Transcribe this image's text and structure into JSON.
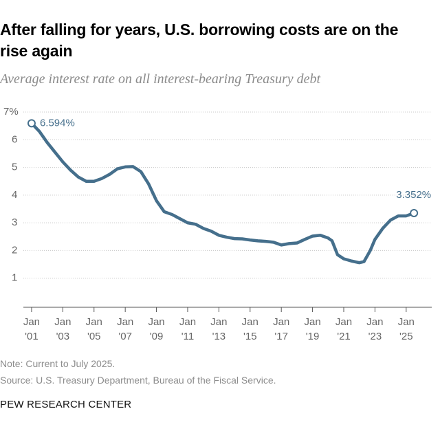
{
  "chart_data": {
    "type": "line",
    "title": "After falling for years, U.S. borrowing costs are on the rise again",
    "subtitle": "Average interest rate on all interest-bearing Treasury debt",
    "note": "Note: Current to July 2025.",
    "source": "Source: U.S. Treasury Department, Bureau of the Fiscal Service.",
    "brand": "PEW RESEARCH CENTER",
    "x": [
      2001.0,
      2001.5,
      2002.0,
      2002.5,
      2003.0,
      2003.5,
      2004.0,
      2004.5,
      2005.0,
      2005.5,
      2006.0,
      2006.5,
      2007.0,
      2007.5,
      2008.0,
      2008.5,
      2009.0,
      2009.5,
      2010.0,
      2010.5,
      2011.0,
      2011.5,
      2012.0,
      2012.5,
      2013.0,
      2013.5,
      2014.0,
      2014.5,
      2015.0,
      2015.5,
      2016.0,
      2016.5,
      2017.0,
      2017.5,
      2018.0,
      2018.5,
      2019.0,
      2019.5,
      2020.0,
      2020.25,
      2020.6,
      2021.0,
      2021.5,
      2022.0,
      2022.3,
      2022.7,
      2023.0,
      2023.5,
      2024.0,
      2024.5,
      2025.0,
      2025.5
    ],
    "series": [
      {
        "name": "Average interest rate",
        "color": "#456f8c",
        "values": [
          6.594,
          6.3,
          5.9,
          5.55,
          5.2,
          4.9,
          4.65,
          4.5,
          4.5,
          4.6,
          4.75,
          4.95,
          5.02,
          5.03,
          4.85,
          4.4,
          3.8,
          3.4,
          3.3,
          3.15,
          3.0,
          2.95,
          2.8,
          2.7,
          2.55,
          2.48,
          2.43,
          2.42,
          2.38,
          2.35,
          2.33,
          2.3,
          2.2,
          2.25,
          2.27,
          2.4,
          2.52,
          2.55,
          2.45,
          2.35,
          1.85,
          1.7,
          1.62,
          1.56,
          1.6,
          2.0,
          2.4,
          2.8,
          3.1,
          3.25,
          3.25,
          3.352
        ]
      }
    ],
    "annotations": [
      {
        "label": "6.594%",
        "x": 2001.0,
        "y": 6.594
      },
      {
        "label": "3.352%",
        "x": 2025.5,
        "y": 3.352
      }
    ],
    "xlim": [
      2000.5,
      2026
    ],
    "xticks": [
      {
        "value": 2001,
        "label": "Jan '01"
      },
      {
        "value": 2003,
        "label": "Jan '03"
      },
      {
        "value": 2005,
        "label": "Jan '05"
      },
      {
        "value": 2007,
        "label": "Jan '07"
      },
      {
        "value": 2009,
        "label": "Jan '09"
      },
      {
        "value": 2011,
        "label": "Jan '11"
      },
      {
        "value": 2013,
        "label": "Jan '13"
      },
      {
        "value": 2015,
        "label": "Jan '15"
      },
      {
        "value": 2017,
        "label": "Jan '17"
      },
      {
        "value": 2019,
        "label": "Jan '19"
      },
      {
        "value": 2021,
        "label": "Jan '21"
      },
      {
        "value": 2023,
        "label": "Jan '23"
      },
      {
        "value": 2025,
        "label": "Jan '25"
      }
    ],
    "ylim": [
      0,
      7
    ],
    "yticks": [
      1,
      2,
      3,
      4,
      5,
      6,
      {
        "value": 7,
        "label": "7%"
      }
    ],
    "grid": true
  }
}
